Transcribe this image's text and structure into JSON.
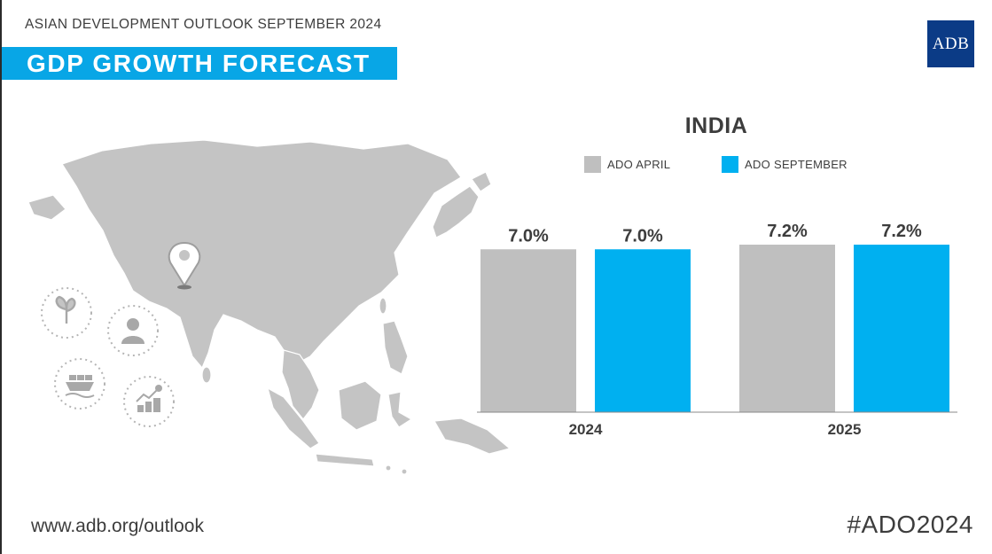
{
  "header": {
    "subtitle": "ASIAN DEVELOPMENT OUTLOOK SEPTEMBER 2024",
    "title": "GDP GROWTH FORECAST",
    "logo_text": "ADB"
  },
  "footer": {
    "url": "www.adb.org/outlook",
    "hashtag": "#ADO2024"
  },
  "colors": {
    "brand_blue": "#08a6e6",
    "april_gray": "#bfbfbf",
    "september_blue": "#00b0f0",
    "logo_navy": "#0b3b86",
    "map_gray": "#c4c4c4"
  },
  "icons": [
    "location-pin-icon",
    "plant-icon",
    "person-icon",
    "cargo-ship-icon",
    "growth-coins-icon"
  ],
  "chart_data": {
    "type": "bar",
    "title": "INDIA",
    "categories": [
      "2024",
      "2025"
    ],
    "series": [
      {
        "name": "ADO APRIL",
        "values": [
          7.0,
          7.2
        ],
        "labels": [
          "7.0%",
          "7.2%"
        ],
        "color": "#bfbfbf"
      },
      {
        "name": "ADO SEPTEMBER",
        "values": [
          7.0,
          7.2
        ],
        "labels": [
          "7.0%",
          "7.2%"
        ],
        "color": "#00b0f0"
      }
    ],
    "xlabel": "",
    "ylabel": "",
    "ylim": [
      0,
      8
    ],
    "grid": false,
    "legend": "top"
  }
}
